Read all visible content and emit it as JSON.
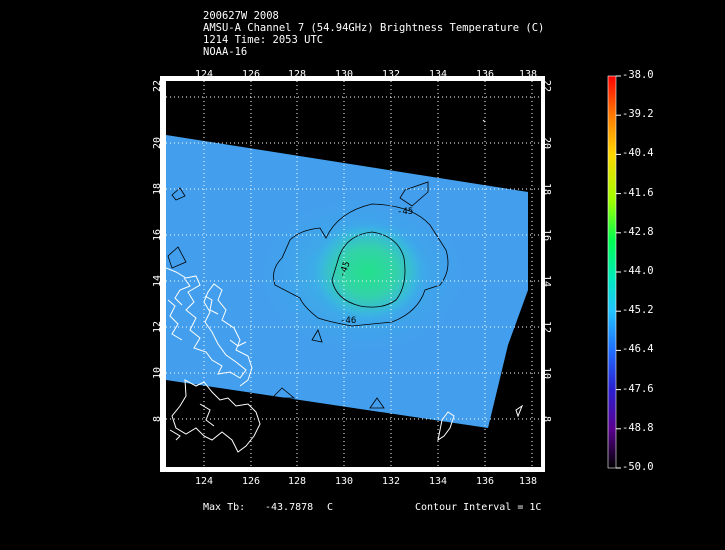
{
  "header": {
    "line1": "200627W 2008",
    "line2": "AMSU-A Channel 7 (54.94GHz) Brightness Temperature (C)",
    "line3": "1214 Time: 2053 UTC",
    "line4": "NOAA-16"
  },
  "axes": {
    "lon_ticks": [
      "124",
      "126",
      "128",
      "130",
      "132",
      "134",
      "136",
      "138"
    ],
    "lat_ticks": [
      "8",
      "10",
      "12",
      "14",
      "16",
      "18",
      "20",
      "22"
    ]
  },
  "contour_labels": [
    "-45",
    "-45",
    "-46"
  ],
  "colorbar": {
    "labels": [
      "-38.0",
      "-39.2",
      "-40.4",
      "-41.6",
      "-42.8",
      "-44.0",
      "-45.2",
      "-46.4",
      "-47.6",
      "-48.8",
      "-50.0"
    ],
    "colors": [
      "#ff0000",
      "#ff8000",
      "#ffd000",
      "#a0ff00",
      "#00ff60",
      "#00e0c0",
      "#20c8ff",
      "#1a70ff",
      "#2020d0",
      "#6a0090",
      "#000000"
    ]
  },
  "footer": {
    "max_tb_label": "Max Tb:",
    "max_tb_value": "-43.7878",
    "max_tb_unit": "C",
    "contour_interval": "Contour Interval = 1C"
  }
}
